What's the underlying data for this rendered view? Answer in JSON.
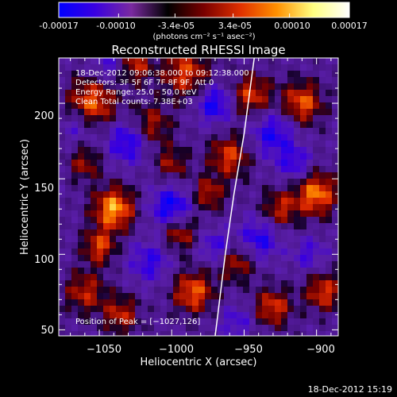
{
  "chart_data": {
    "type": "heatmap",
    "title": "Reconstructed RHESSI Image",
    "xlabel": "Heliocentric X (arcsec)",
    "ylabel": "Heliocentric Y (arcsec)",
    "xlim": [
      -1078,
      -885
    ],
    "ylim": [
      46,
      230
    ],
    "x_ticks": [
      -1050,
      -1000,
      -950,
      -900
    ],
    "x_tick_labels": [
      "−1050",
      "−1000",
      "−950",
      "−900"
    ],
    "y_ticks": [
      50,
      100,
      150,
      200
    ],
    "y_tick_labels": [
      "50",
      "100",
      "150",
      "200"
    ],
    "colorbar": {
      "min": -0.00017,
      "max": 0.00017,
      "tick_values": [
        -0.00017,
        -0.0001,
        -3.4e-05,
        3.4e-05,
        0.0001,
        0.00017
      ],
      "tick_labels": [
        "-0.00017",
        "-0.00010",
        "-3.4e-05",
        "3.4e-05",
        "0.00010",
        "0.00017"
      ],
      "unit_label": "(photons cm⁻² s⁻¹ asec⁻²)",
      "colors": [
        "#0000ff",
        "#3a00e0",
        "#7a2aa0",
        "#000000",
        "#7a0000",
        "#e03000",
        "#ff9000",
        "#ffff80",
        "#ffffff"
      ]
    },
    "annotations": [
      "18-Dec-2012 09:06:38.000 to 09:12:38.000",
      "Detectors: 3F 5F 6F 7F 8F 9F, Att 0",
      "Energy Range: 25.0 - 50.0 keV",
      "Clean    Total counts: 7.38E+03"
    ],
    "peak_label": "Position of Peak = [−1027,126]",
    "peak": {
      "x": -1027,
      "y": 126
    },
    "limb_curve": [
      [
        -970,
        46
      ],
      [
        -963,
        100
      ],
      [
        -957,
        140
      ],
      [
        -950,
        180
      ],
      [
        -943,
        230
      ]
    ],
    "limb_color": "#ffffff",
    "blobs": [
      {
        "x": -1040,
        "y": 130,
        "a": 1.0,
        "r": 10
      },
      {
        "x": -1055,
        "y": 200,
        "a": 0.8,
        "r": 12
      },
      {
        "x": -1050,
        "y": 105,
        "a": 0.7,
        "r": 8
      },
      {
        "x": -1060,
        "y": 75,
        "a": 0.6,
        "r": 10
      },
      {
        "x": -1015,
        "y": 185,
        "a": 0.6,
        "r": 10
      },
      {
        "x": -990,
        "y": 220,
        "a": 0.7,
        "r": 12
      },
      {
        "x": -995,
        "y": 115,
        "a": 0.7,
        "r": 9
      },
      {
        "x": -985,
        "y": 75,
        "a": 0.8,
        "r": 10
      },
      {
        "x": -975,
        "y": 140,
        "a": 0.6,
        "r": 8
      },
      {
        "x": -960,
        "y": 165,
        "a": 0.7,
        "r": 10
      },
      {
        "x": -955,
        "y": 95,
        "a": 0.6,
        "r": 9
      },
      {
        "x": -945,
        "y": 205,
        "a": 0.7,
        "r": 10
      },
      {
        "x": -925,
        "y": 130,
        "a": 0.6,
        "r": 9
      },
      {
        "x": -900,
        "y": 140,
        "a": 0.9,
        "r": 10
      },
      {
        "x": -910,
        "y": 200,
        "a": 0.8,
        "r": 10
      },
      {
        "x": -895,
        "y": 75,
        "a": 0.7,
        "r": 9
      },
      {
        "x": -930,
        "y": 65,
        "a": 0.7,
        "r": 9
      },
      {
        "x": -1060,
        "y": 160,
        "a": 0.5,
        "r": 8
      },
      {
        "x": -1025,
        "y": 225,
        "a": 0.6,
        "r": 8
      },
      {
        "x": -1000,
        "y": 160,
        "a": 0.5,
        "r": 8
      },
      {
        "x": -1035,
        "y": 60,
        "a": 0.6,
        "r": 9
      },
      {
        "x": -1000,
        "y": 130,
        "a": -0.8,
        "r": 10
      },
      {
        "x": -1030,
        "y": 175,
        "a": -0.7,
        "r": 10
      },
      {
        "x": -970,
        "y": 200,
        "a": -0.7,
        "r": 9
      },
      {
        "x": -930,
        "y": 180,
        "a": -0.6,
        "r": 11
      },
      {
        "x": -940,
        "y": 110,
        "a": -0.6,
        "r": 10
      },
      {
        "x": -1015,
        "y": 95,
        "a": -0.5,
        "r": 10
      },
      {
        "x": -1065,
        "y": 185,
        "a": -0.4,
        "r": 8
      },
      {
        "x": -970,
        "y": 105,
        "a": -0.5,
        "r": 8
      },
      {
        "x": -915,
        "y": 160,
        "a": -0.5,
        "r": 8
      },
      {
        "x": -905,
        "y": 100,
        "a": -0.4,
        "r": 8
      },
      {
        "x": -1045,
        "y": 225,
        "a": -0.4,
        "r": 8
      },
      {
        "x": -955,
        "y": 55,
        "a": -0.4,
        "r": 8
      }
    ]
  },
  "footer": {
    "timestamp": "18-Dec-2012 15:19"
  }
}
